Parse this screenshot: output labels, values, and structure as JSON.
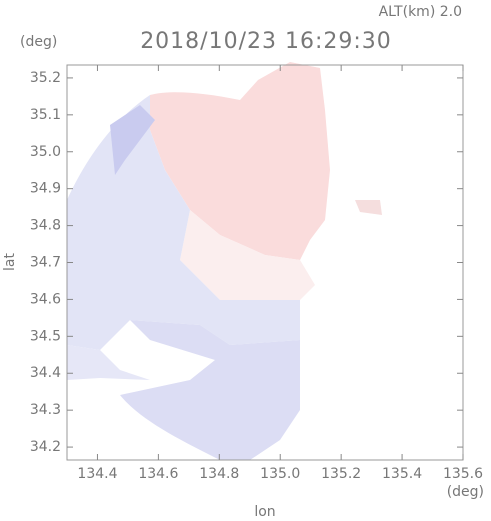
{
  "chart_data": {
    "type": "field",
    "title": "2018/10/23 16:29:30",
    "subtitle": "ALT(km) 2.0",
    "x_label": "lon",
    "y_label": "lat",
    "x_unit": "(deg)",
    "y_unit": "(deg)",
    "xlim": [
      134.3,
      135.6
    ],
    "ylim": [
      34.165,
      35.235
    ],
    "xticks": [
      134.4,
      134.6,
      134.8,
      {
        "value": 135.0,
        "label": "135.0"
      },
      135.2,
      135.4,
      135.6
    ],
    "yticks": [
      34.2,
      34.3,
      34.4,
      34.5,
      34.6,
      34.7,
      34.8,
      34.9,
      {
        "value": 35.0,
        "label": "35.0"
      },
      35.1,
      35.2
    ]
  }
}
